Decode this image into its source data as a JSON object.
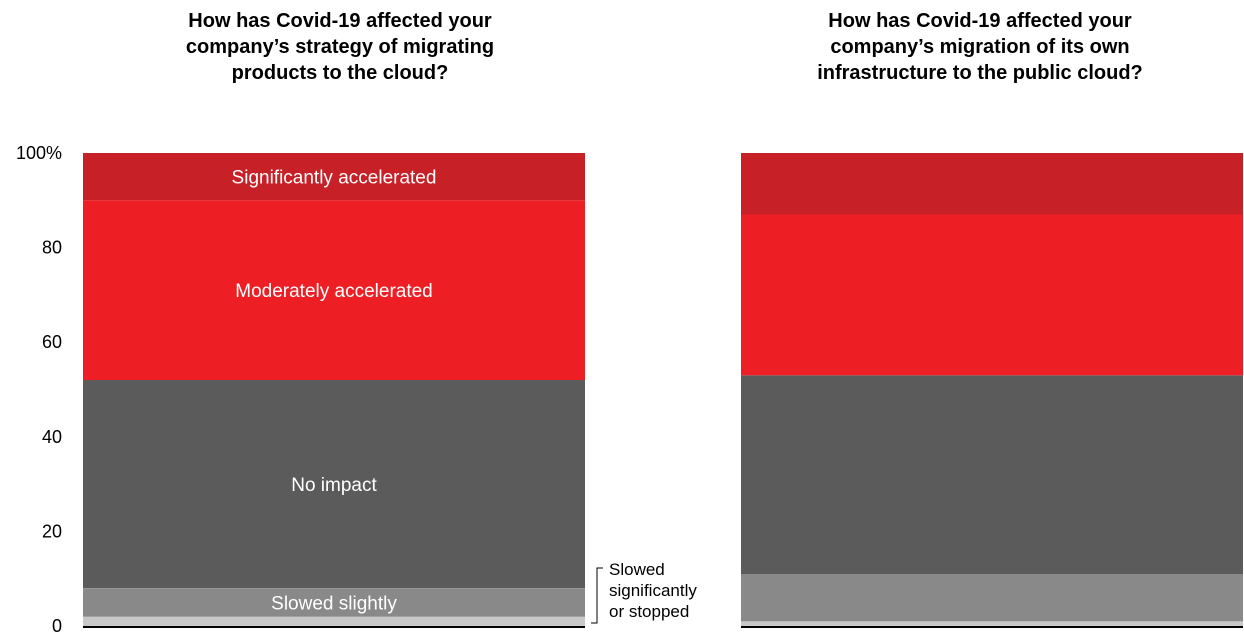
{
  "chart_data": [
    {
      "type": "bar",
      "stacked": true,
      "title": "How has Covid-19 affected your company’s strategy of migrating products to the cloud?",
      "ylim": [
        0,
        100
      ],
      "yticks": [
        "0",
        "20",
        "40",
        "60",
        "80",
        "100%"
      ],
      "series": [
        {
          "name": "Slowed significantly or stopped",
          "value": 2,
          "color": "#c8c8c8"
        },
        {
          "name": "Slowed slightly",
          "value": 6,
          "color": "#898989"
        },
        {
          "name": "No impact",
          "value": 44,
          "color": "#5b5b5b"
        },
        {
          "name": "Moderately accelerated",
          "value": 38,
          "color": "#ed1f24"
        },
        {
          "name": "Significantly accelerated",
          "value": 10,
          "color": "#c82027"
        }
      ],
      "annotation": "Slowed significantly or stopped"
    },
    {
      "type": "bar",
      "stacked": true,
      "title": "How has Covid-19 affected your company’s migration of its own infrastructure to the public cloud?",
      "ylim": [
        0,
        100
      ],
      "series": [
        {
          "name": "Slowed significantly or stopped",
          "value": 1,
          "color": "#c8c8c8"
        },
        {
          "name": "Slowed slightly",
          "value": 10,
          "color": "#898989"
        },
        {
          "name": "No impact",
          "value": 42,
          "color": "#5b5b5b"
        },
        {
          "name": "Moderately accelerated",
          "value": 34,
          "color": "#ed1f24"
        },
        {
          "name": "Significantly accelerated",
          "value": 13,
          "color": "#c82027"
        }
      ]
    }
  ]
}
